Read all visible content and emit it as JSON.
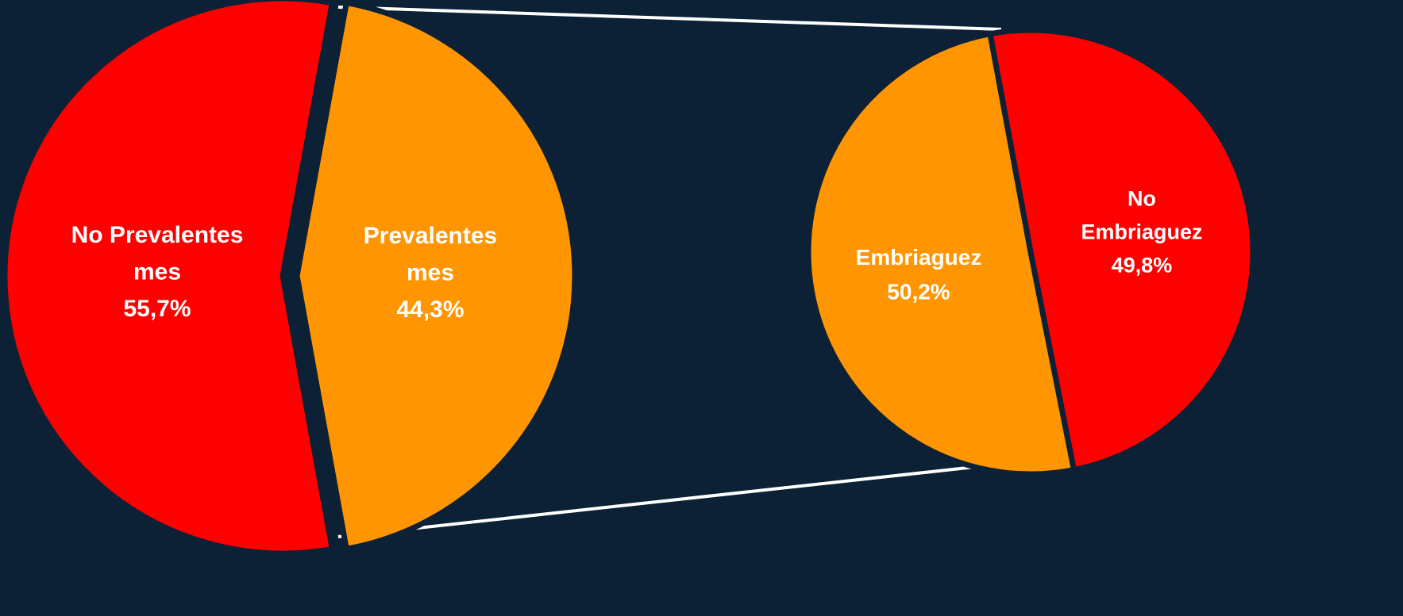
{
  "colors": {
    "background": "#0c2036",
    "red": "#ff0000",
    "orange": "#ff9500",
    "label": "#ffffff",
    "connector": "#ffffff"
  },
  "chart_data": [
    {
      "type": "pie",
      "title": "",
      "slices": [
        {
          "label_lines": [
            "No Prevalentes",
            "mes"
          ],
          "value": 55.7,
          "value_label": "55,7%",
          "color": "#ff0000"
        },
        {
          "label_lines": [
            "Prevalentes",
            "mes"
          ],
          "value": 44.3,
          "value_label": "44,3%",
          "color": "#ff9500"
        }
      ]
    },
    {
      "type": "pie",
      "title": "",
      "breakdown_of": "Prevalentes mes",
      "slices": [
        {
          "label_lines": [
            "Embriaguez"
          ],
          "value": 50.2,
          "value_label": "50,2%",
          "color": "#ff9500"
        },
        {
          "label_lines": [
            "No",
            "Embriaguez"
          ],
          "value": 49.8,
          "value_label": "49,8%",
          "color": "#ff0000"
        }
      ]
    }
  ]
}
